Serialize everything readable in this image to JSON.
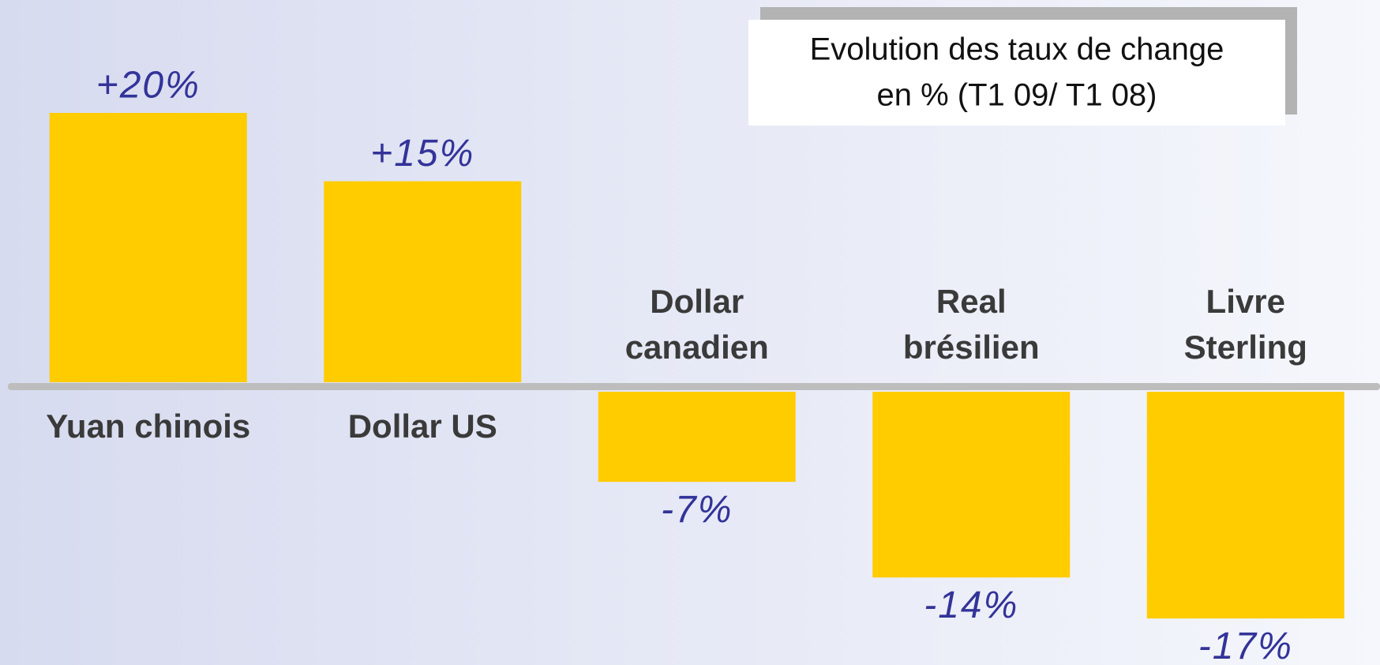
{
  "chart_data": {
    "type": "bar",
    "title": [
      "Evolution des taux de change",
      "en % (T1 09/ T1 08)"
    ],
    "categories": [
      "Yuan chinois",
      "Dollar US",
      "Dollar canadien",
      "Real brésilien",
      "Livre Sterling"
    ],
    "values": [
      20,
      15,
      -7,
      -14,
      -17
    ],
    "value_labels": [
      "+20%",
      "+15%",
      "-7%",
      "-14%",
      "-17%"
    ],
    "color": "#ffcc00"
  }
}
